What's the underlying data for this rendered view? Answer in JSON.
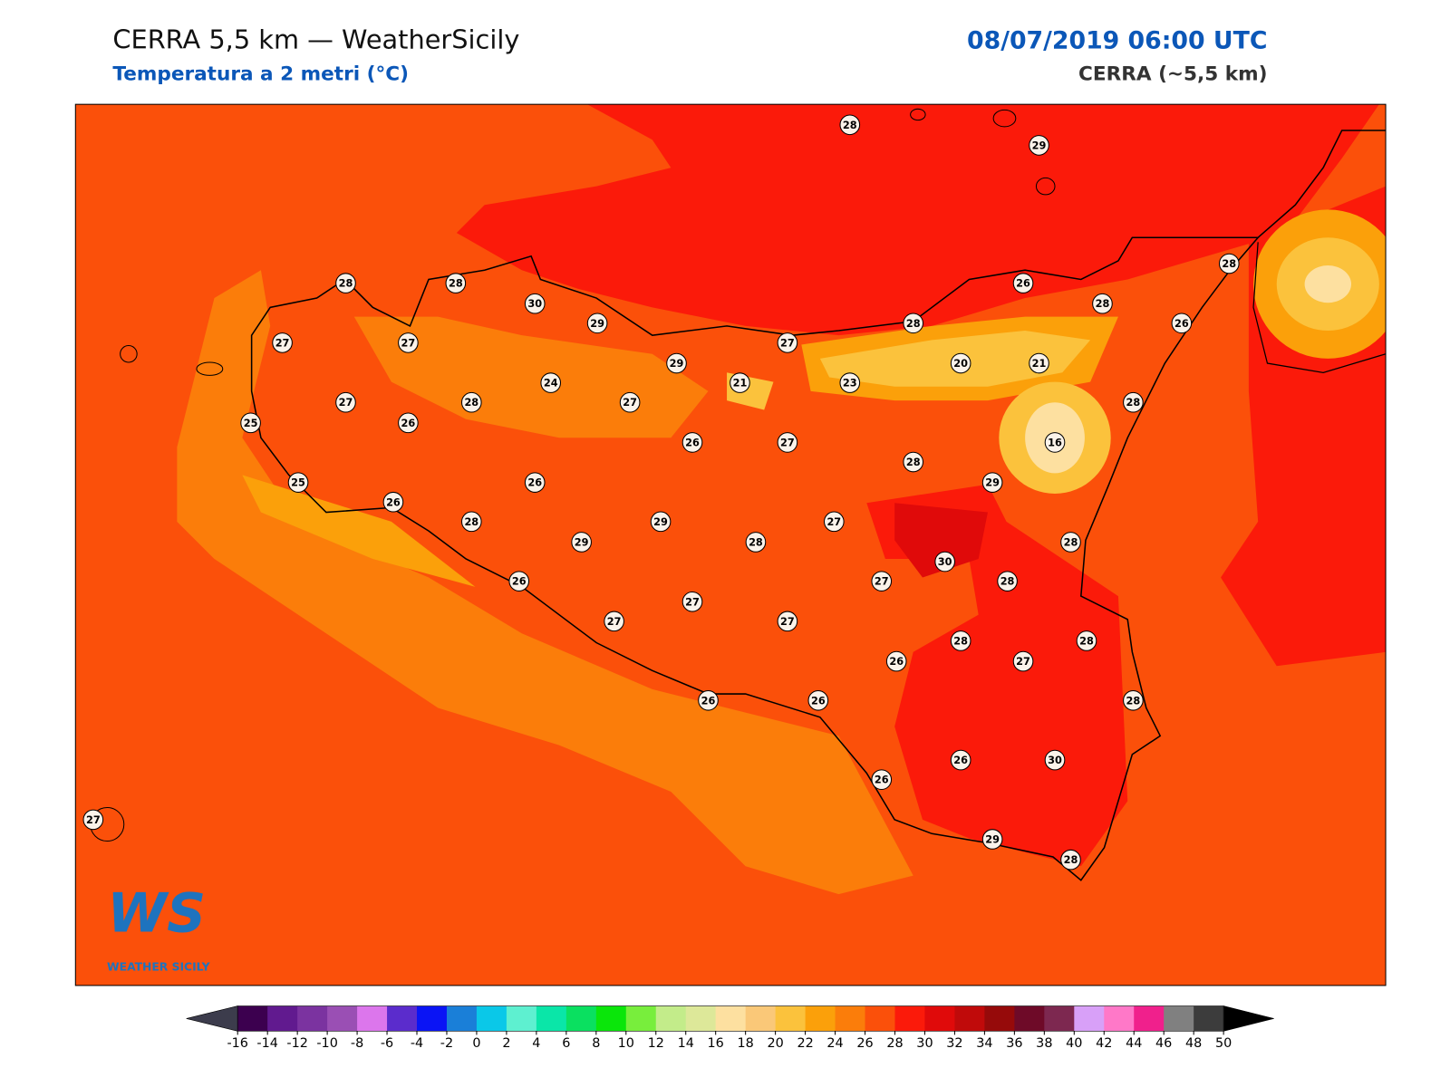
{
  "header": {
    "title": "CERRA 5,5 km — WeatherSicily",
    "subtitle": "Temperatura a 2 metri (°C)",
    "date": "08/07/2019 06:00 UTC",
    "source": "CERRA (~5,5 km)"
  },
  "stations": [
    28,
    29,
    28,
    28,
    30,
    29,
    26,
    28,
    28,
    26,
    27,
    27,
    29,
    27,
    28,
    20,
    21,
    24,
    21,
    23,
    27,
    28,
    27,
    28,
    25,
    26,
    26,
    27,
    16,
    28,
    29,
    25,
    26,
    26,
    28,
    29,
    27,
    29,
    28,
    28,
    30,
    26,
    27,
    28,
    27,
    27,
    27,
    28,
    28,
    26,
    27,
    26,
    26,
    28,
    26,
    30,
    26,
    27,
    29,
    28
  ],
  "colorbar": {
    "ticks": [
      -16,
      -14,
      -12,
      -10,
      -8,
      -6,
      -4,
      -2,
      0,
      2,
      4,
      6,
      8,
      10,
      12,
      14,
      16,
      18,
      20,
      22,
      24,
      26,
      28,
      30,
      32,
      34,
      36,
      38,
      40,
      42,
      44,
      46,
      48,
      50
    ],
    "colors": [
      "#3c004f",
      "#611a8f",
      "#7b33a0",
      "#9a4fb4",
      "#dc76ec",
      "#5b2ccc",
      "#0a14f5",
      "#1a7fd8",
      "#0ac8e8",
      "#5ef0d0",
      "#0ae6a8",
      "#0ae060",
      "#0ae60a",
      "#78ee3c",
      "#c3ec8a",
      "#dde899",
      "#fde0a0",
      "#fac878",
      "#fbc23c",
      "#fba00a",
      "#fb7d0a",
      "#fb500a",
      "#fb1a0a",
      "#e00a0a",
      "#c00a0a",
      "#960a0a",
      "#6e0a28",
      "#7d2850",
      "#d8a0f8",
      "#ff78c8",
      "#f0208c",
      "#808080",
      "#3c3c3c"
    ],
    "under_color": "#3c3c4c",
    "over_color": "#000000"
  },
  "logo": {
    "mark": "WS",
    "caption": "WEATHER SICILY"
  }
}
